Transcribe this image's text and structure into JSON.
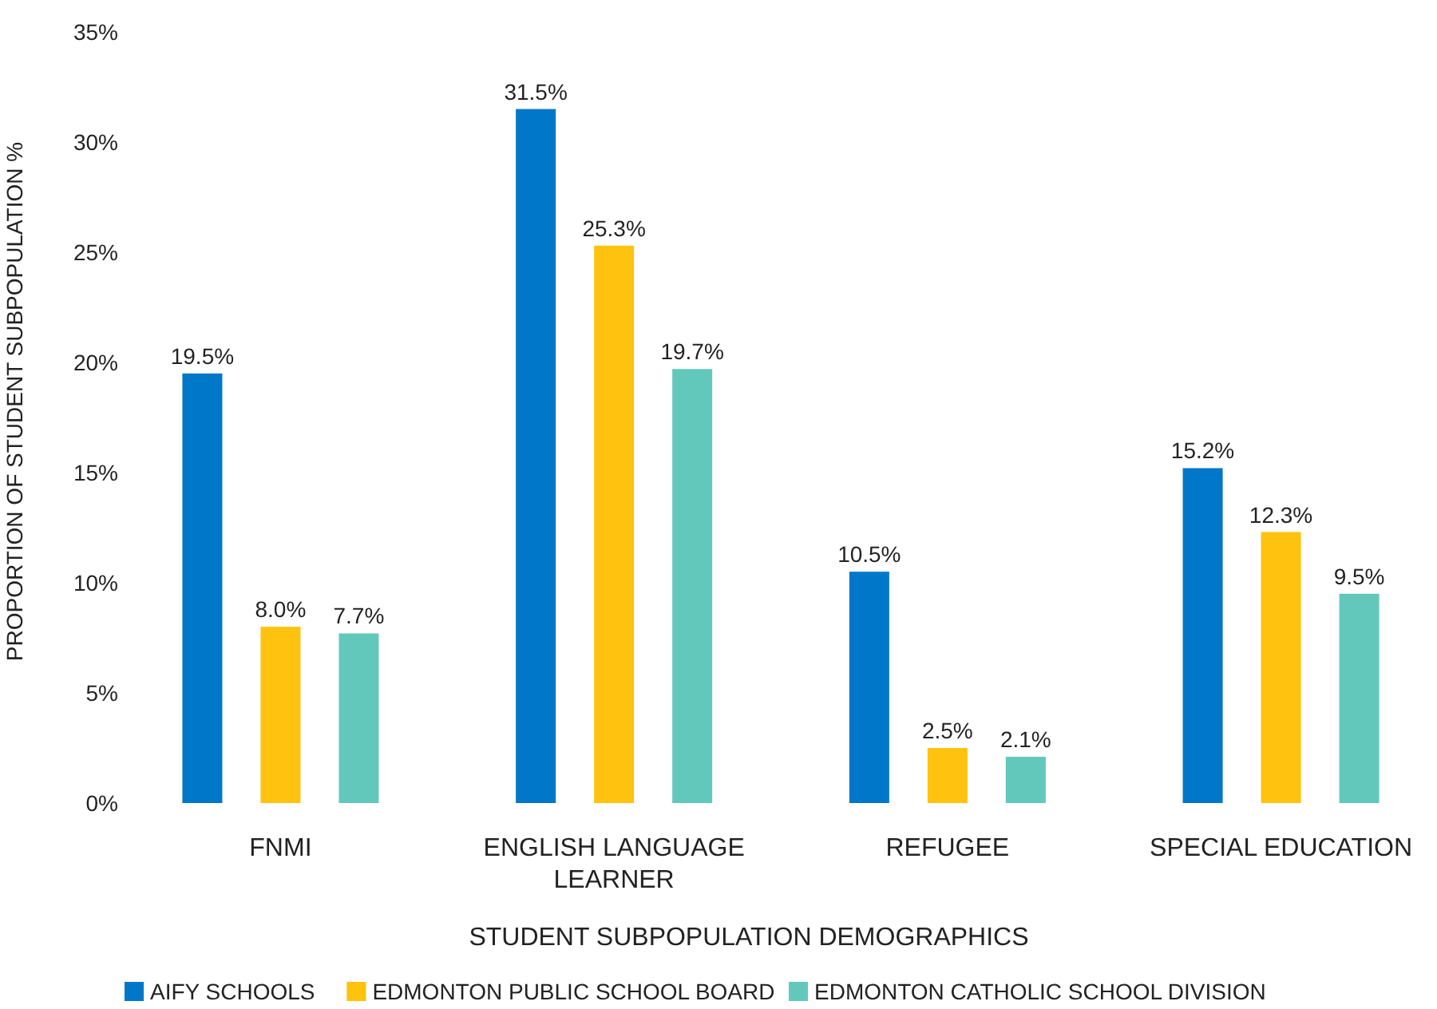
{
  "chart_data": {
    "type": "bar",
    "xlabel": "STUDENT SUBPOPULATION DEMOGRAPHICS",
    "ylabel": "PROPORTION OF STUDENT SUBPOPULATION %",
    "categories": [
      "FNMI",
      "ENGLISH LANGUAGE LEARNER",
      "REFUGEE",
      "SPECIAL EDUCATION"
    ],
    "series": [
      {
        "name": "AIFY SCHOOLS",
        "color": "#0077c8",
        "values": [
          19.5,
          31.5,
          10.5,
          15.2
        ],
        "value_labels": [
          "19.5%",
          "31.5%",
          "10.5%",
          "15.2%"
        ]
      },
      {
        "name": "EDMONTON PUBLIC SCHOOL BOARD",
        "color": "#ffc20e",
        "values": [
          8.0,
          25.3,
          2.5,
          12.3
        ],
        "value_labels": [
          "8.0%",
          "25.3%",
          "2.5%",
          "12.3%"
        ]
      },
      {
        "name": "EDMONTON CATHOLIC SCHOOL DIVISION",
        "color": "#62c8bc",
        "values": [
          7.7,
          19.7,
          2.1,
          9.5
        ],
        "value_labels": [
          "7.7%",
          "19.7%",
          "2.1%",
          "9.5%"
        ]
      }
    ],
    "ylim": [
      0,
      35
    ],
    "yticks": [
      {
        "value": 0,
        "label": "0%"
      },
      {
        "value": 5,
        "label": "5%"
      },
      {
        "value": 10,
        "label": "10%"
      },
      {
        "value": 15,
        "label": "15%"
      },
      {
        "value": 20,
        "label": "20%"
      },
      {
        "value": 25,
        "label": "25%"
      },
      {
        "value": 30,
        "label": "30%"
      },
      {
        "value": 35,
        "label": "35%"
      }
    ],
    "grid": false,
    "legend": "bottom"
  }
}
